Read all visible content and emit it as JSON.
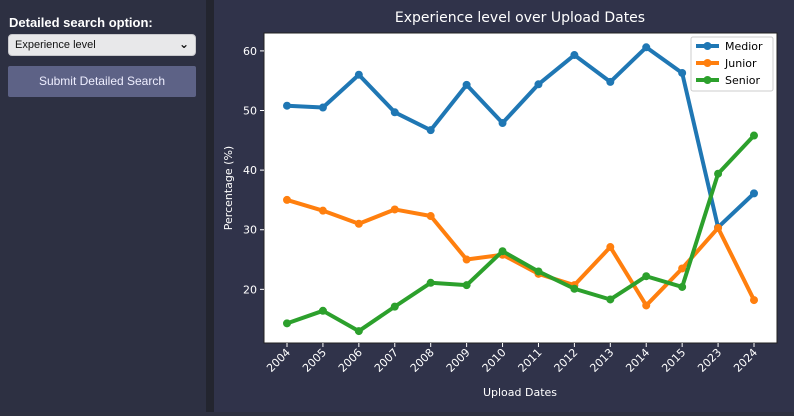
{
  "sidebar": {
    "label": "Detailed search option:",
    "select_value": "Experience level",
    "submit_label": "Submit Detailed Search"
  },
  "chart_data": {
    "type": "line",
    "title": "Experience level over Upload Dates",
    "xlabel": "Upload Dates",
    "ylabel": "Percentage (%)",
    "categories": [
      "2004",
      "2005",
      "2006",
      "2007",
      "2008",
      "2009",
      "2010",
      "2011",
      "2012",
      "2013",
      "2014",
      "2015",
      "2023",
      "2024"
    ],
    "yticks": [
      20,
      30,
      40,
      50,
      60
    ],
    "ylim": [
      11,
      63
    ],
    "legend_position": "top-right",
    "grid": false,
    "series": [
      {
        "name": "Medior",
        "color": "#1f77b4",
        "values": [
          50.8,
          50.5,
          56.0,
          49.7,
          46.7,
          54.3,
          47.9,
          54.4,
          59.3,
          54.8,
          60.6,
          56.3,
          30.4,
          36.1
        ]
      },
      {
        "name": "Junior",
        "color": "#ff7f0e",
        "values": [
          35.0,
          33.2,
          31.0,
          33.4,
          32.3,
          25.0,
          25.8,
          22.6,
          20.7,
          27.1,
          17.3,
          23.5,
          30.3,
          18.2
        ]
      },
      {
        "name": "Senior",
        "color": "#2ca02c",
        "values": [
          14.3,
          16.4,
          13.0,
          17.1,
          21.1,
          20.7,
          26.4,
          23.0,
          20.1,
          18.3,
          22.2,
          20.4,
          39.4,
          45.8
        ]
      }
    ]
  }
}
